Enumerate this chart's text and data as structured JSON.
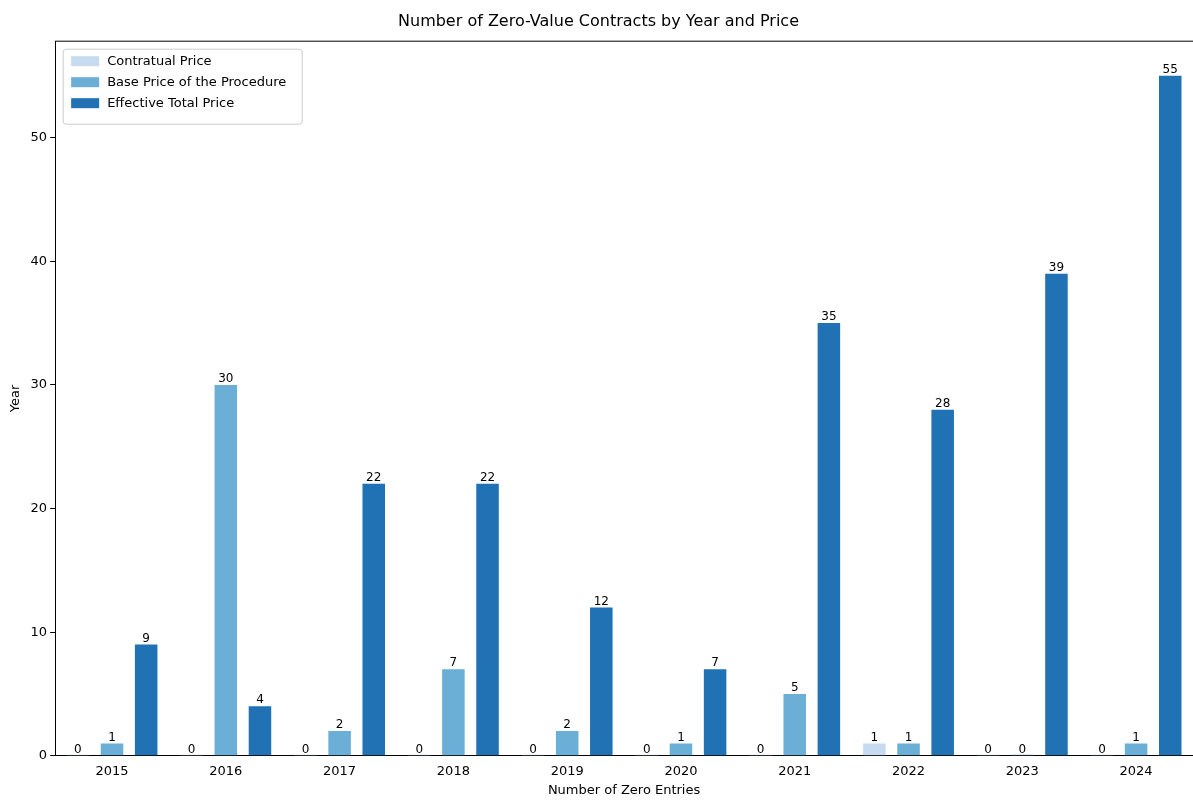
{
  "chart_data": {
    "type": "bar",
    "title": "Number of Zero-Value Contracts by Year and Price",
    "xlabel": "Number of Zero Entries",
    "ylabel": "Year",
    "categories": [
      "2015",
      "2016",
      "2017",
      "2018",
      "2019",
      "2020",
      "2021",
      "2022",
      "2023",
      "2024"
    ],
    "series": [
      {
        "name": "Contratual Price",
        "color": "#c6dbef",
        "values": [
          0,
          0,
          0,
          0,
          0,
          0,
          0,
          1,
          0,
          0
        ]
      },
      {
        "name": "Base Price of the Procedure",
        "color": "#6baed6",
        "values": [
          1,
          30,
          2,
          7,
          2,
          1,
          5,
          1,
          0,
          1
        ]
      },
      {
        "name": "Effective Total Price",
        "color": "#2171b5",
        "values": [
          9,
          4,
          22,
          22,
          12,
          7,
          35,
          28,
          39,
          55
        ]
      }
    ],
    "ylim": [
      0,
      57.8
    ],
    "yticks": [
      0,
      10,
      20,
      30,
      40,
      50
    ],
    "grid": false,
    "legend": "top left",
    "data_labels": true
  }
}
